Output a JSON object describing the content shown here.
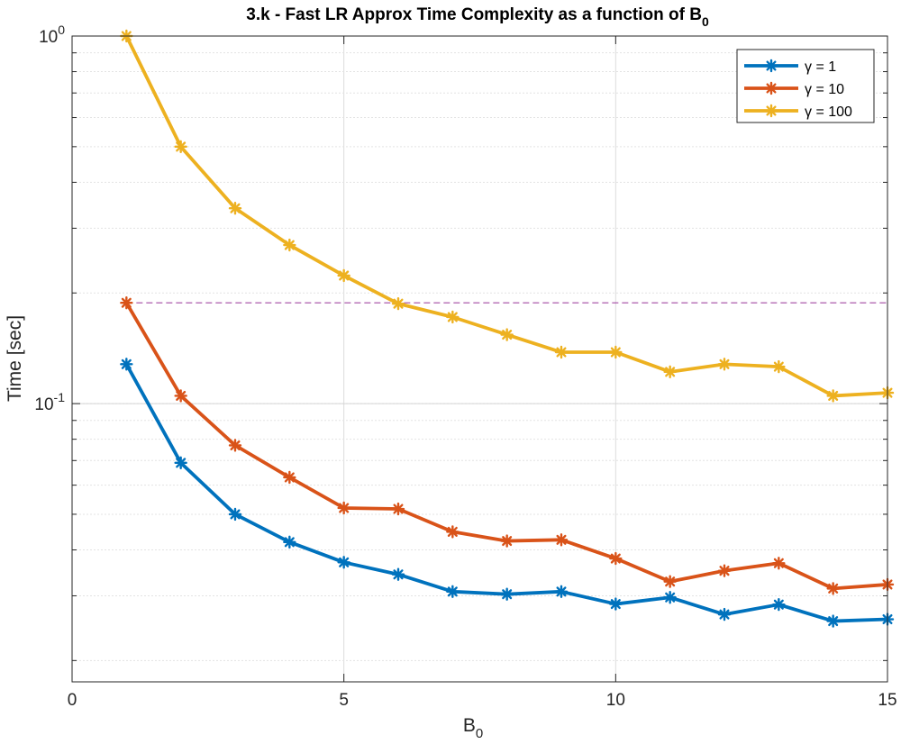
{
  "chart_data": {
    "type": "line",
    "title": "3.k - Fast LR Approx Time Complexity as a function of B",
    "title_subscript": "0",
    "xlabel": "B",
    "xlabel_subscript": "0",
    "ylabel": "Time [sec]",
    "xlim": [
      0,
      15
    ],
    "ylim": [
      0.0175,
      1.0
    ],
    "yscale": "log",
    "grid": true,
    "legend_position": "top-right",
    "x_ticks": [
      "0",
      "5",
      "10",
      "15"
    ],
    "y_tick_labels": [
      {
        "base": "10",
        "exp": "0"
      },
      {
        "base": "10",
        "exp": "-1"
      }
    ],
    "x": [
      1,
      2,
      3,
      4,
      5,
      6,
      7,
      8,
      9,
      10,
      11,
      12,
      13,
      14,
      15
    ],
    "series": [
      {
        "name": "γ = 1",
        "color": "#0072BD",
        "values": [
          0.128,
          0.069,
          0.05,
          0.042,
          0.037,
          0.0343,
          0.0308,
          0.0303,
          0.0308,
          0.0285,
          0.0297,
          0.0267,
          0.0284,
          0.0256,
          0.0259
        ]
      },
      {
        "name": "γ = 10",
        "color": "#D95319",
        "values": [
          0.188,
          0.105,
          0.077,
          0.063,
          0.052,
          0.0517,
          0.0448,
          0.0423,
          0.0426,
          0.0379,
          0.0328,
          0.0351,
          0.0368,
          0.0314,
          0.0322
        ]
      },
      {
        "name": "γ = 100",
        "color": "#EDB120",
        "values": [
          1.0,
          0.5,
          0.34,
          0.27,
          0.223,
          0.187,
          0.172,
          0.154,
          0.138,
          0.138,
          0.122,
          0.128,
          0.126,
          0.105,
          0.107
        ]
      }
    ],
    "reference_line": {
      "y": 0.188,
      "color": "#A349A4",
      "style": "dashed"
    }
  }
}
